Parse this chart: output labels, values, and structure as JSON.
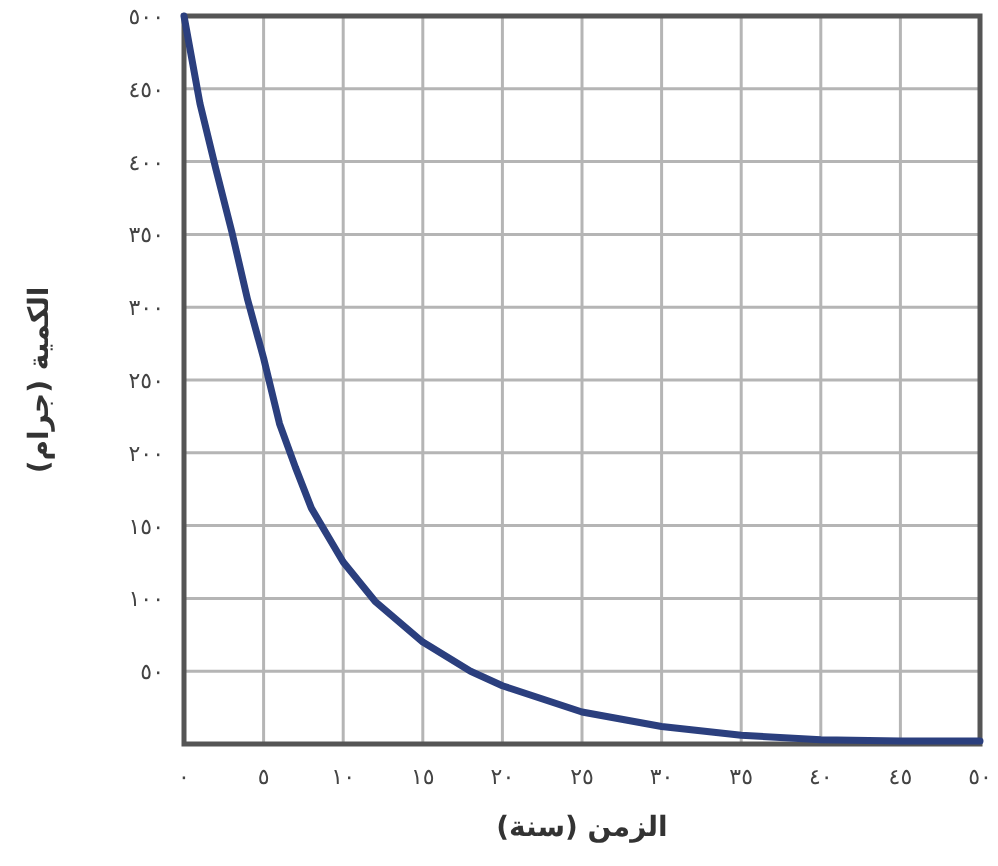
{
  "chart_data": {
    "type": "line",
    "xlabel": "الزمن (سنة)",
    "ylabel": "الكمية (جرام)",
    "x": [
      0,
      1,
      2,
      3,
      4,
      5,
      6,
      7,
      8,
      10,
      12,
      15,
      18,
      20,
      25,
      30,
      35,
      40,
      45,
      50
    ],
    "series": [
      {
        "color": "#2b3f7e",
        "values": [
          500,
          440,
          395,
          352,
          305,
          265,
          220,
          190,
          162,
          125,
          98,
          70,
          50,
          40,
          22,
          12,
          6,
          3,
          2,
          2
        ]
      }
    ],
    "xlim": [
      0,
      50
    ],
    "ylim": [
      0,
      500
    ],
    "xticks": [
      {
        "value": 0,
        "label": "٠"
      },
      {
        "value": 5,
        "label": "٥"
      },
      {
        "value": 10,
        "label": "١٠"
      },
      {
        "value": 15,
        "label": "١٥"
      },
      {
        "value": 20,
        "label": "٢٠"
      },
      {
        "value": 25,
        "label": "٢٥"
      },
      {
        "value": 30,
        "label": "٣٠"
      },
      {
        "value": 35,
        "label": "٣٥"
      },
      {
        "value": 40,
        "label": "٤٠"
      },
      {
        "value": 45,
        "label": "٤٥"
      },
      {
        "value": 50,
        "label": "٥٠"
      }
    ],
    "yticks": [
      {
        "value": 50,
        "label": "٥٠"
      },
      {
        "value": 100,
        "label": "١٠٠"
      },
      {
        "value": 150,
        "label": "١٥٠"
      },
      {
        "value": 200,
        "label": "٢٠٠"
      },
      {
        "value": 250,
        "label": "٢٥٠"
      },
      {
        "value": 300,
        "label": "٣٠٠"
      },
      {
        "value": 350,
        "label": "٣٥٠"
      },
      {
        "value": 400,
        "label": "٤٠٠"
      },
      {
        "value": 450,
        "label": "٤٥٠"
      },
      {
        "value": 500,
        "label": "٥٠٠"
      }
    ],
    "grid": true
  }
}
